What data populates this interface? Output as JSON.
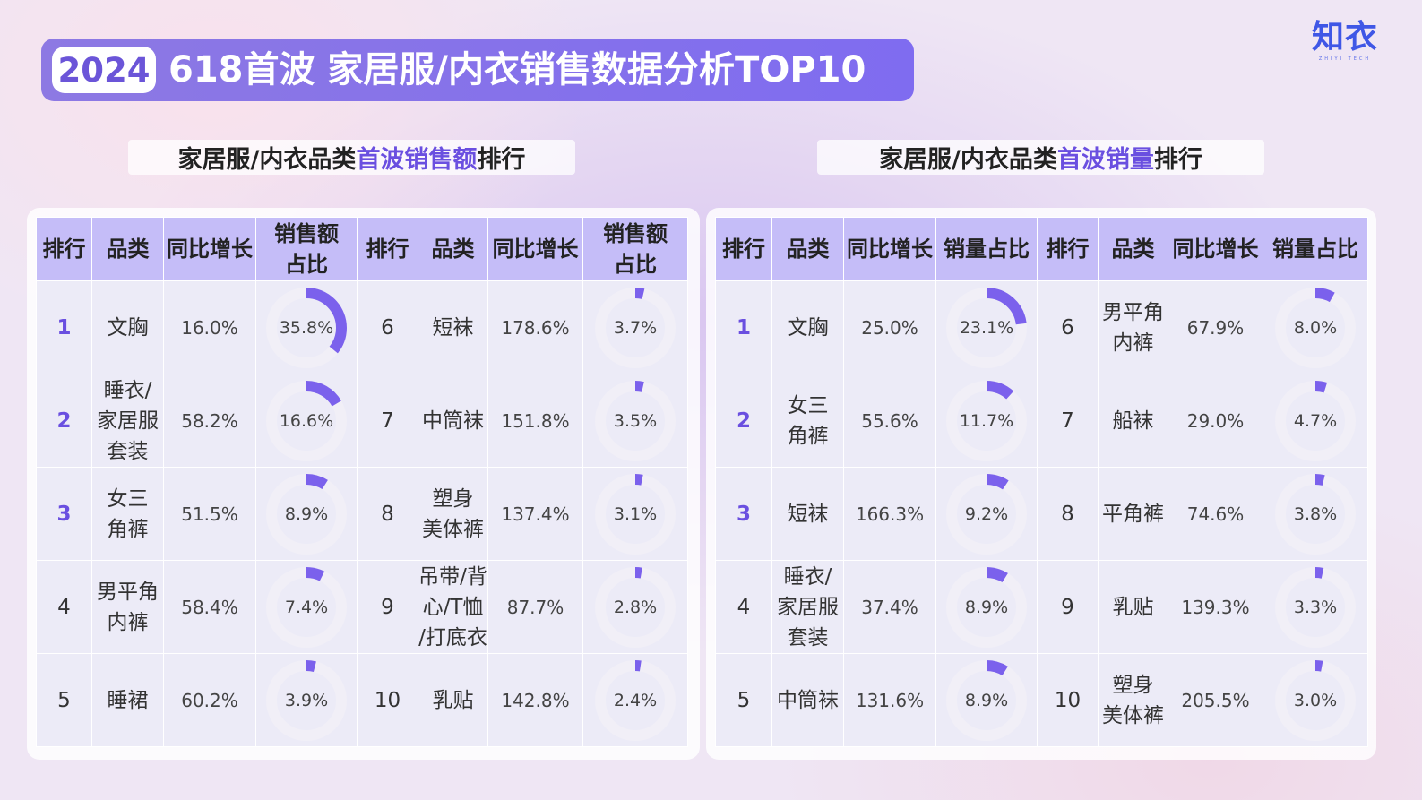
{
  "header": {
    "year": "2024",
    "title": "618首波 家居服/内衣销售数据分析TOP10",
    "logo_text": "知衣",
    "logo_sub": "ZHIYI TECH"
  },
  "left_panel": {
    "subtitle_pre": "家居服/内衣品类",
    "subtitle_hl": "首波销售额",
    "subtitle_post": "排行",
    "headers": [
      "排行",
      "品类",
      "同比增长",
      "销售额\n占比",
      "排行",
      "品类",
      "同比增长",
      "销售额\n占比"
    ],
    "rows": [
      {
        "rank": "1",
        "category": "文胸",
        "growth": "16.0%",
        "share": "35.8%",
        "share_value": 35.8
      },
      {
        "rank": "2",
        "category": "睡衣/\n家居服\n套装",
        "growth": "58.2%",
        "share": "16.6%",
        "share_value": 16.6
      },
      {
        "rank": "3",
        "category": "女三\n角裤",
        "growth": "51.5%",
        "share": "8.9%",
        "share_value": 8.9
      },
      {
        "rank": "4",
        "category": "男平角\n内裤",
        "growth": "58.4%",
        "share": "7.4%",
        "share_value": 7.4
      },
      {
        "rank": "5",
        "category": "睡裙",
        "growth": "60.2%",
        "share": "3.9%",
        "share_value": 3.9
      },
      {
        "rank": "6",
        "category": "短袜",
        "growth": "178.6%",
        "share": "3.7%",
        "share_value": 3.7
      },
      {
        "rank": "7",
        "category": "中筒袜",
        "growth": "151.8%",
        "share": "3.5%",
        "share_value": 3.5
      },
      {
        "rank": "8",
        "category": "塑身\n美体裤",
        "growth": "137.4%",
        "share": "3.1%",
        "share_value": 3.1
      },
      {
        "rank": "9",
        "category": "吊带/背\n心/T恤\n/打底衣",
        "growth": "87.7%",
        "share": "2.8%",
        "share_value": 2.8
      },
      {
        "rank": "10",
        "category": "乳贴",
        "growth": "142.8%",
        "share": "2.4%",
        "share_value": 2.4
      }
    ]
  },
  "right_panel": {
    "subtitle_pre": "家居服/内衣品类",
    "subtitle_hl": "首波销量",
    "subtitle_post": "排行",
    "headers": [
      "排行",
      "品类",
      "同比增长",
      "销量占比",
      "排行",
      "品类",
      "同比增长",
      "销量占比"
    ],
    "rows": [
      {
        "rank": "1",
        "category": "文胸",
        "growth": "25.0%",
        "share": "23.1%",
        "share_value": 23.1
      },
      {
        "rank": "2",
        "category": "女三\n角裤",
        "growth": "55.6%",
        "share": "11.7%",
        "share_value": 11.7
      },
      {
        "rank": "3",
        "category": "短袜",
        "growth": "166.3%",
        "share": "9.2%",
        "share_value": 9.2
      },
      {
        "rank": "4",
        "category": "睡衣/\n家居服\n套装",
        "growth": "37.4%",
        "share": "8.9%",
        "share_value": 8.9
      },
      {
        "rank": "5",
        "category": "中筒袜",
        "growth": "131.6%",
        "share": "8.9%",
        "share_value": 8.9
      },
      {
        "rank": "6",
        "category": "男平角\n内裤",
        "growth": "67.9%",
        "share": "8.0%",
        "share_value": 8.0
      },
      {
        "rank": "7",
        "category": "船袜",
        "growth": "29.0%",
        "share": "4.7%",
        "share_value": 4.7
      },
      {
        "rank": "8",
        "category": "平角裤",
        "growth": "74.6%",
        "share": "3.8%",
        "share_value": 3.8
      },
      {
        "rank": "9",
        "category": "乳贴",
        "growth": "139.3%",
        "share": "3.3%",
        "share_value": 3.3
      },
      {
        "rank": "10",
        "category": "塑身\n美体裤",
        "growth": "205.5%",
        "share": "3.0%",
        "share_value": 3.0
      }
    ]
  },
  "colors": {
    "accent": "#7b61ec",
    "donut_track": "#f1eff7",
    "header_bg": "#c5bdf8",
    "cell_bg": "#ecebf7",
    "highlight_text": "#6a4fe0"
  }
}
